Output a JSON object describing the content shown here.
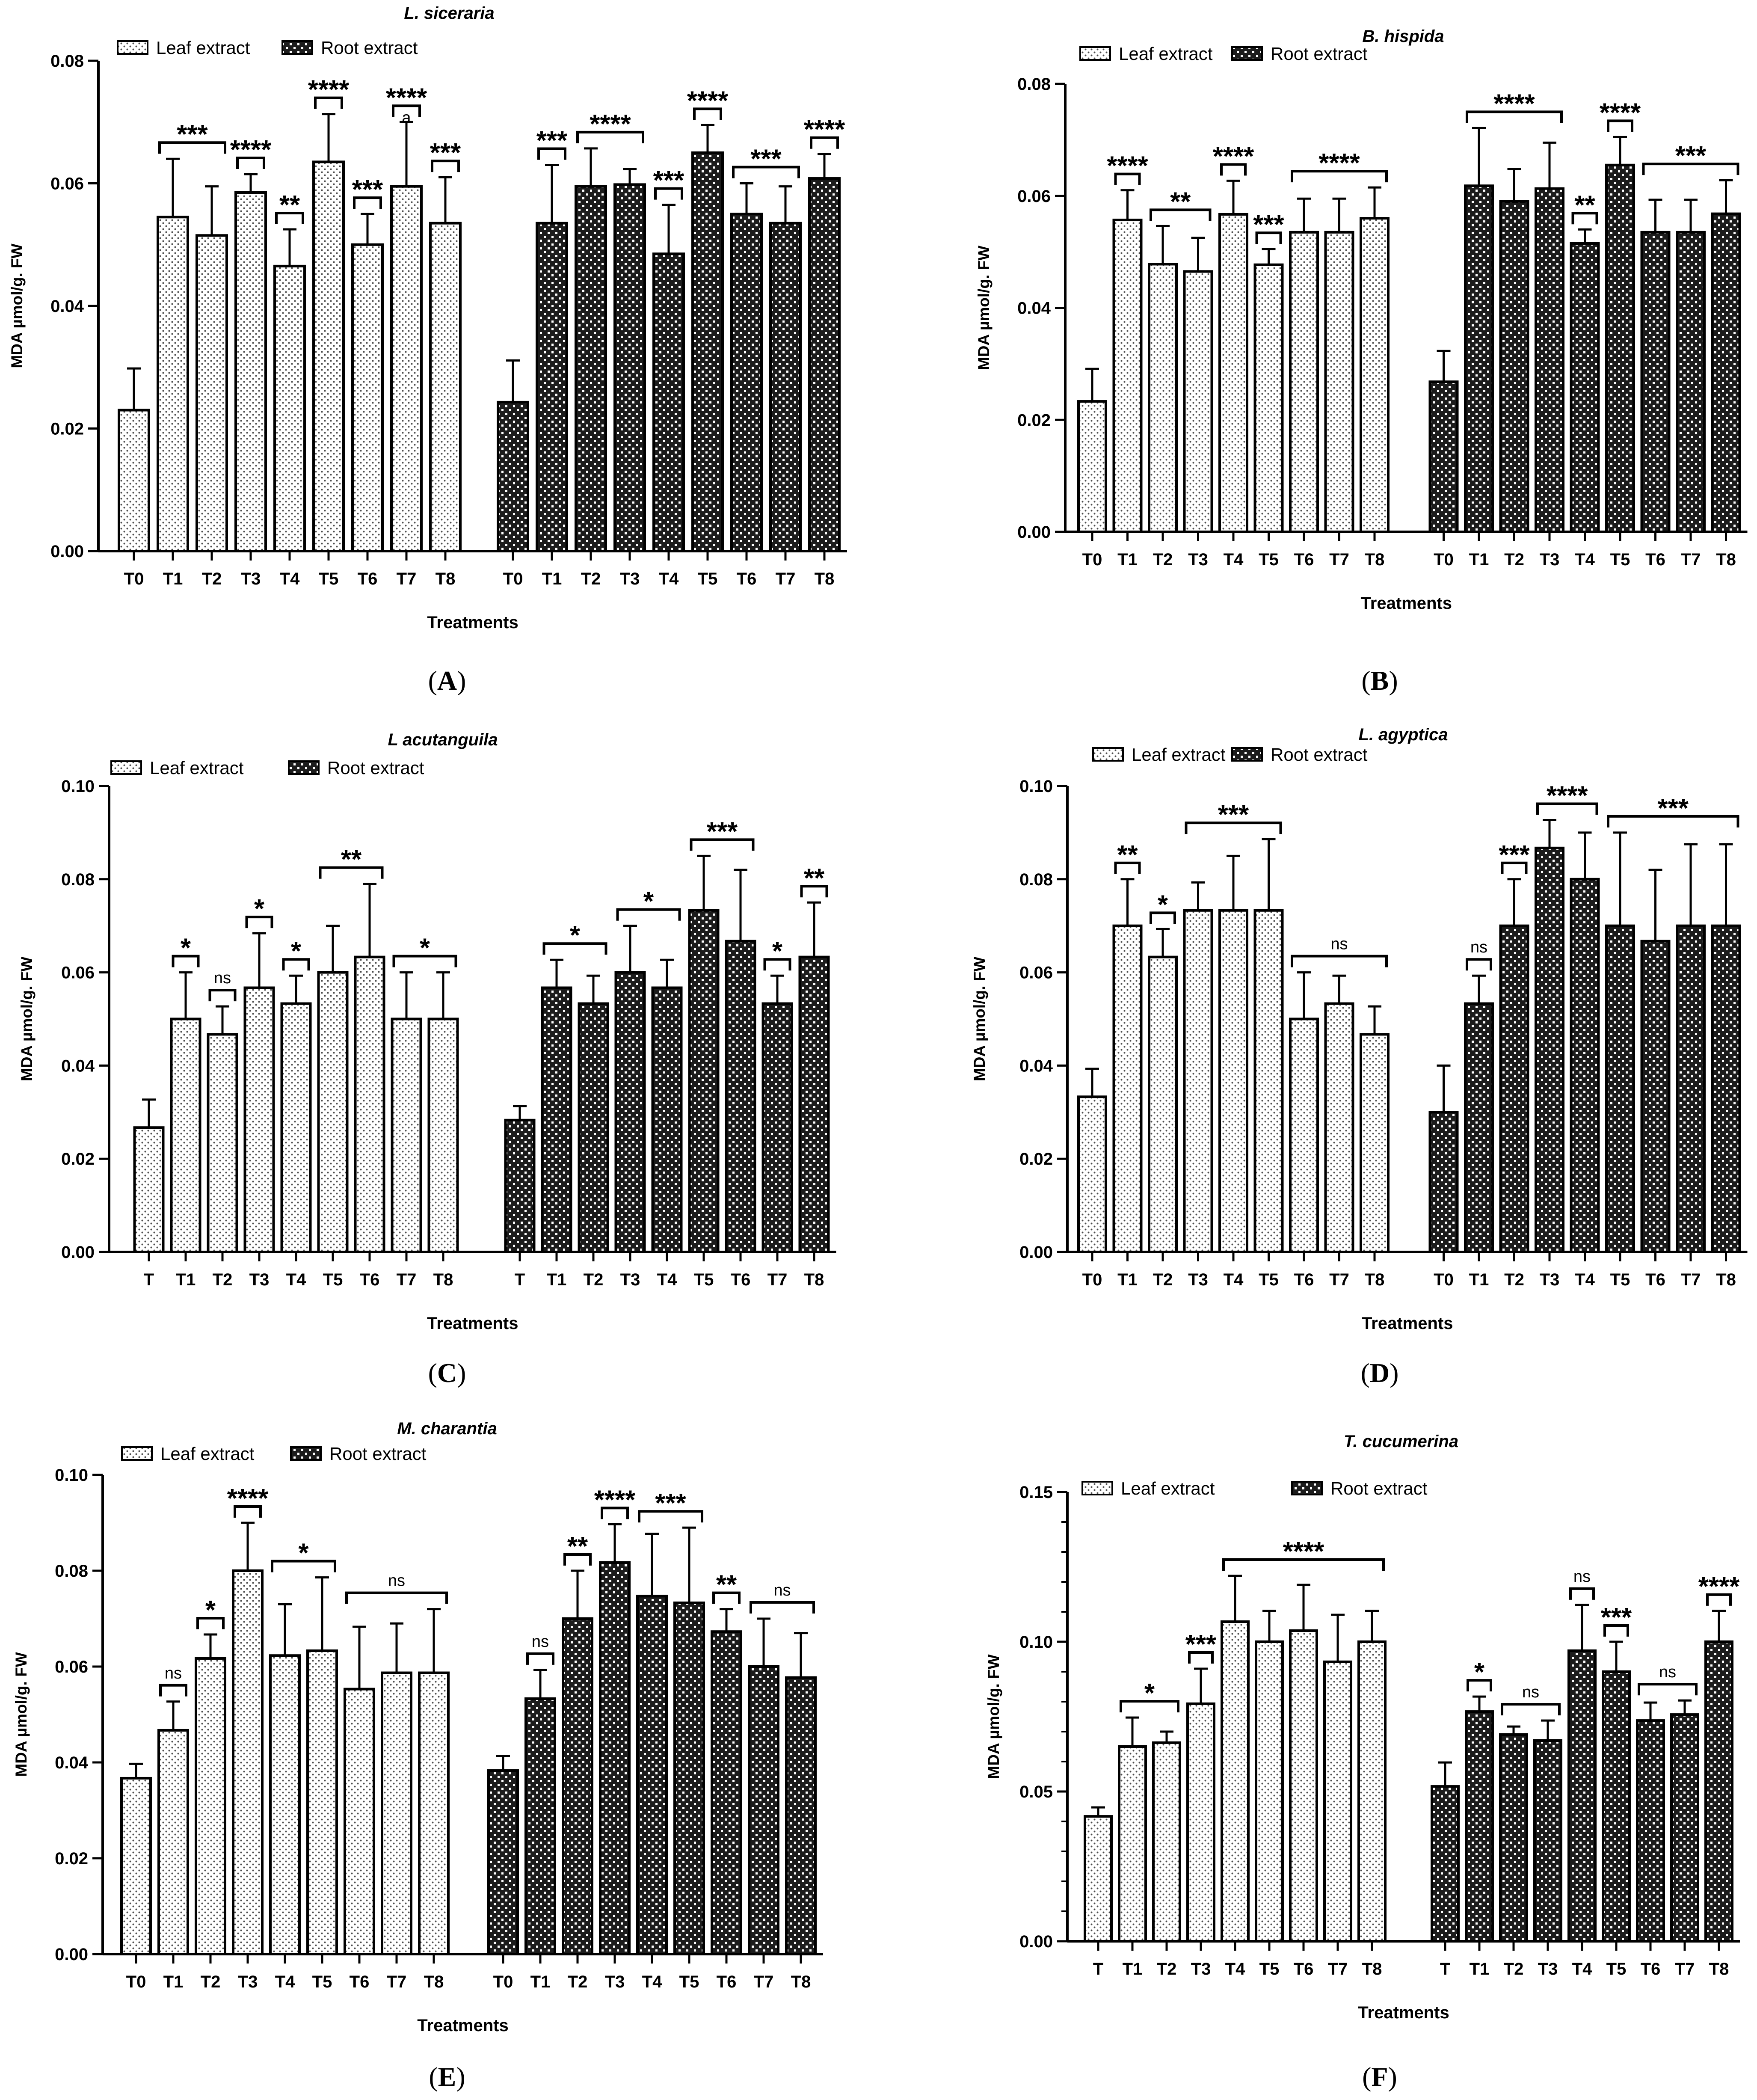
{
  "figure": {
    "legend_leaf": "Leaf extract",
    "legend_root": "Root extract",
    "xlabel": "Treatments",
    "ylabel": "MDA µmol/g. FW"
  },
  "colors": {
    "leaf_dots": "#4d4d4d",
    "root_fill": "#1c1c1c",
    "axis": "#000000",
    "background": "#ffffff"
  },
  "chart_data": [
    {
      "type": "bar",
      "panel_label": "A",
      "title": "L.  siceraria",
      "xlabel": "Treatments",
      "ylabel": "MDA µmol/g. FW",
      "ylim": [
        0,
        0.08
      ],
      "yticks": [
        0,
        0.02,
        0.04,
        0.06,
        0.08
      ],
      "ytick_labels": [
        "0.00",
        "0.02",
        "0.04",
        "0.06",
        "0.08"
      ],
      "groups": [
        {
          "name": "Leaf extract",
          "categories": [
            "T0",
            "T1",
            "T2",
            "T3",
            "T4",
            "T5",
            "T6",
            "T7",
            "T8"
          ],
          "values": [
            0.023,
            0.0545,
            0.0515,
            0.0585,
            0.0465,
            0.0635,
            0.05,
            0.0595,
            0.0535
          ],
          "errors": [
            0.0068,
            0.0095,
            0.008,
            0.003,
            0.006,
            0.0078,
            0.005,
            0.0105,
            0.0075
          ],
          "annotations": [
            {
              "from": 1,
              "to": 2,
              "label": "***"
            },
            {
              "from": 3,
              "to": 3,
              "label": "****"
            },
            {
              "from": 4,
              "to": 4,
              "label": "**"
            },
            {
              "from": 5,
              "to": 5,
              "label": "****"
            },
            {
              "from": 6,
              "to": 6,
              "label": "***"
            },
            {
              "from": 7,
              "to": 7,
              "label": "****"
            },
            {
              "from": 8,
              "to": 8,
              "label": "***"
            }
          ],
          "bar_letters": [
            {
              "index": 7,
              "label": "a"
            }
          ]
        },
        {
          "name": "Root extract",
          "categories": [
            "T0",
            "T1",
            "T2",
            "T3",
            "T4",
            "T5",
            "T6",
            "T7",
            "T8"
          ],
          "values": [
            0.0243,
            0.0535,
            0.0595,
            0.0598,
            0.0485,
            0.065,
            0.055,
            0.0535,
            0.0608
          ],
          "errors": [
            0.0068,
            0.0095,
            0.0062,
            0.0025,
            0.008,
            0.0045,
            0.005,
            0.006,
            0.004
          ],
          "annotations": [
            {
              "from": 1,
              "to": 1,
              "label": "***"
            },
            {
              "from": 2,
              "to": 3,
              "label": "****"
            },
            {
              "from": 4,
              "to": 4,
              "label": "***"
            },
            {
              "from": 5,
              "to": 5,
              "label": "****"
            },
            {
              "from": 6,
              "to": 7,
              "label": "***"
            },
            {
              "from": 8,
              "to": 8,
              "label": "****"
            }
          ]
        }
      ]
    },
    {
      "type": "bar",
      "panel_label": "B",
      "title": "B. hispida",
      "xlabel": "Treatments",
      "ylabel": "MDA µmol/g. FW",
      "ylim": [
        0,
        0.08
      ],
      "yticks": [
        0,
        0.02,
        0.04,
        0.06,
        0.08
      ],
      "ytick_labels": [
        "0.00",
        "0.02",
        "0.04",
        "0.06",
        "0.08"
      ],
      "groups": [
        {
          "name": "Leaf extract",
          "categories": [
            "T0",
            "T1",
            "T2",
            "T3",
            "T4",
            "T5",
            "T6",
            "T7",
            "T8"
          ],
          "values": [
            0.0233,
            0.0557,
            0.0478,
            0.0465,
            0.0567,
            0.0477,
            0.0535,
            0.0535,
            0.056
          ],
          "errors": [
            0.0058,
            0.0053,
            0.0068,
            0.006,
            0.006,
            0.0028,
            0.006,
            0.006,
            0.0055
          ],
          "annotations": [
            {
              "from": 1,
              "to": 1,
              "label": "****"
            },
            {
              "from": 2,
              "to": 3,
              "label": "**"
            },
            {
              "from": 4,
              "to": 4,
              "label": "****"
            },
            {
              "from": 5,
              "to": 5,
              "label": "***"
            },
            {
              "from": 6,
              "to": 8,
              "label": "****"
            }
          ]
        },
        {
          "name": "Root extract",
          "categories": [
            "T0",
            "T1",
            "T2",
            "T3",
            "T4",
            "T5",
            "T6",
            "T7",
            "T8"
          ],
          "values": [
            0.0268,
            0.0618,
            0.059,
            0.0613,
            0.0515,
            0.0655,
            0.0535,
            0.0535,
            0.0568
          ],
          "errors": [
            0.0055,
            0.0103,
            0.0058,
            0.0082,
            0.0025,
            0.005,
            0.0058,
            0.0058,
            0.006
          ],
          "annotations": [
            {
              "from": 1,
              "to": 3,
              "label": "****"
            },
            {
              "from": 4,
              "to": 4,
              "label": "**"
            },
            {
              "from": 5,
              "to": 5,
              "label": "****"
            },
            {
              "from": 6,
              "to": 8,
              "label": "***"
            }
          ]
        }
      ]
    },
    {
      "type": "bar",
      "panel_label": "C",
      "title": "L acutanguila",
      "xlabel": "Treatments",
      "ylabel": "MDA µmol/g. FW",
      "ylim": [
        0,
        0.1
      ],
      "yticks": [
        0,
        0.02,
        0.04,
        0.06,
        0.08,
        0.1
      ],
      "ytick_labels": [
        "0.00",
        "0.02",
        "0.04",
        "0.06",
        "0.08",
        "0.10"
      ],
      "groups": [
        {
          "name": "Leaf extract",
          "categories": [
            "T",
            "T1",
            "T2",
            "T3",
            "T4",
            "T5",
            "T6",
            "T7",
            "T8"
          ],
          "values": [
            0.0267,
            0.05,
            0.0467,
            0.0567,
            0.0533,
            0.06,
            0.0633,
            0.05,
            0.05
          ],
          "errors": [
            0.006,
            0.01,
            0.006,
            0.0117,
            0.006,
            0.01,
            0.0157,
            0.01,
            0.01
          ],
          "annotations": [
            {
              "from": 1,
              "to": 1,
              "label": "*"
            },
            {
              "from": 2,
              "to": 2,
              "label": "ns"
            },
            {
              "from": 3,
              "to": 3,
              "label": "*"
            },
            {
              "from": 4,
              "to": 4,
              "label": "*"
            },
            {
              "from": 5,
              "to": 6,
              "label": "**"
            },
            {
              "from": 7,
              "to": 8,
              "label": "*"
            }
          ]
        },
        {
          "name": "Root extract",
          "categories": [
            "T",
            "T1",
            "T2",
            "T3",
            "T4",
            "T5",
            "T6",
            "T7",
            "T8"
          ],
          "values": [
            0.0283,
            0.0567,
            0.0533,
            0.06,
            0.0567,
            0.0733,
            0.0667,
            0.0533,
            0.0633
          ],
          "errors": [
            0.003,
            0.006,
            0.006,
            0.01,
            0.006,
            0.0117,
            0.0153,
            0.006,
            0.0117
          ],
          "annotations": [
            {
              "from": 1,
              "to": 2,
              "label": "*"
            },
            {
              "from": 3,
              "to": 4,
              "label": "*"
            },
            {
              "from": 5,
              "to": 6,
              "label": "***"
            },
            {
              "from": 7,
              "to": 7,
              "label": "*"
            },
            {
              "from": 8,
              "to": 8,
              "label": "**"
            }
          ]
        }
      ]
    },
    {
      "type": "bar",
      "panel_label": "D",
      "title": "L. agyptica",
      "xlabel": "Treatments",
      "ylabel": "MDA µmol/g. FW",
      "ylim": [
        0,
        0.1
      ],
      "yticks": [
        0,
        0.02,
        0.04,
        0.06,
        0.08,
        0.1
      ],
      "ytick_labels": [
        "0.00",
        "0.02",
        "0.04",
        "0.06",
        "0.08",
        "0.10"
      ],
      "groups": [
        {
          "name": "Leaf extract",
          "categories": [
            "T0",
            "T1",
            "T2",
            "T3",
            "T4",
            "T5",
            "T6",
            "T7",
            "T8"
          ],
          "values": [
            0.0333,
            0.07,
            0.0633,
            0.0733,
            0.0733,
            0.0733,
            0.05,
            0.0533,
            0.0467
          ],
          "errors": [
            0.006,
            0.01,
            0.006,
            0.006,
            0.0117,
            0.0153,
            0.01,
            0.006,
            0.006
          ],
          "annotations": [
            {
              "from": 1,
              "to": 1,
              "label": "**"
            },
            {
              "from": 2,
              "to": 2,
              "label": "*"
            },
            {
              "from": 3,
              "to": 5,
              "label": "***"
            },
            {
              "from": 6,
              "to": 8,
              "label": "ns"
            }
          ]
        },
        {
          "name": "Root extract",
          "categories": [
            "T0",
            "T1",
            "T2",
            "T3",
            "T4",
            "T5",
            "T6",
            "T7",
            "T8"
          ],
          "values": [
            0.03,
            0.0533,
            0.07,
            0.0867,
            0.08,
            0.07,
            0.0667,
            0.07,
            0.07
          ],
          "errors": [
            0.01,
            0.006,
            0.01,
            0.006,
            0.01,
            0.02,
            0.0153,
            0.0175,
            0.0175
          ],
          "annotations": [
            {
              "from": 1,
              "to": 1,
              "label": "ns"
            },
            {
              "from": 2,
              "to": 2,
              "label": "***"
            },
            {
              "from": 3,
              "to": 4,
              "label": "****"
            },
            {
              "from": 5,
              "to": 8,
              "label": "***"
            }
          ]
        }
      ]
    },
    {
      "type": "bar",
      "panel_label": "E",
      "title": "M. charantia",
      "xlabel": "Treatments",
      "ylabel": "MDA µmol/g. FW",
      "ylim": [
        0,
        0.1
      ],
      "yticks": [
        0,
        0.02,
        0.04,
        0.06,
        0.08,
        0.1
      ],
      "ytick_labels": [
        "0.00",
        "0.02",
        "0.04",
        "0.06",
        "0.08",
        "0.10"
      ],
      "groups": [
        {
          "name": "Leaf extract",
          "categories": [
            "T0",
            "T1",
            "T2",
            "T3",
            "T4",
            "T5",
            "T6",
            "T7",
            "T8"
          ],
          "values": [
            0.0367,
            0.0467,
            0.0617,
            0.08,
            0.0623,
            0.0633,
            0.0553,
            0.0587,
            0.0587
          ],
          "errors": [
            0.003,
            0.006,
            0.005,
            0.01,
            0.0107,
            0.0153,
            0.013,
            0.0103,
            0.0133
          ],
          "annotations": [
            {
              "from": 1,
              "to": 1,
              "label": "ns"
            },
            {
              "from": 2,
              "to": 2,
              "label": "*"
            },
            {
              "from": 3,
              "to": 3,
              "label": "****"
            },
            {
              "from": 4,
              "to": 5,
              "label": "*"
            },
            {
              "from": 6,
              "to": 8,
              "label": "ns"
            }
          ]
        },
        {
          "name": "Root extract",
          "categories": [
            "T0",
            "T1",
            "T2",
            "T3",
            "T4",
            "T5",
            "T6",
            "T7",
            "T8"
          ],
          "values": [
            0.0383,
            0.0533,
            0.07,
            0.0817,
            0.0747,
            0.0733,
            0.0673,
            0.06,
            0.0577
          ],
          "errors": [
            0.003,
            0.006,
            0.01,
            0.008,
            0.013,
            0.0157,
            0.0047,
            0.01,
            0.0093
          ],
          "annotations": [
            {
              "from": 1,
              "to": 1,
              "label": "ns"
            },
            {
              "from": 2,
              "to": 2,
              "label": "**"
            },
            {
              "from": 3,
              "to": 3,
              "label": "****"
            },
            {
              "from": 4,
              "to": 5,
              "label": "***"
            },
            {
              "from": 6,
              "to": 6,
              "label": "**"
            },
            {
              "from": 7,
              "to": 8,
              "label": "ns"
            }
          ]
        }
      ]
    },
    {
      "type": "bar",
      "panel_label": "F",
      "title": "T. cucumerina",
      "xlabel": "Treatments",
      "ylabel": "MDA µmol/g. FW",
      "ylim": [
        0,
        0.15
      ],
      "yticks": [
        0,
        0.05,
        0.1,
        0.15
      ],
      "ytick_labels": [
        "0.00",
        "0.05",
        "0.10",
        "0.15"
      ],
      "minor_step": 0.01,
      "groups": [
        {
          "name": "Leaf extract",
          "categories": [
            "T",
            "T1",
            "T2",
            "T3",
            "T4",
            "T5",
            "T6",
            "T7",
            "T8"
          ],
          "values": [
            0.0417,
            0.065,
            0.0663,
            0.0793,
            0.1067,
            0.1,
            0.1037,
            0.0933,
            0.1
          ],
          "errors": [
            0.003,
            0.0097,
            0.0037,
            0.0117,
            0.0153,
            0.0103,
            0.0153,
            0.0157,
            0.0103
          ],
          "annotations": [
            {
              "from": 1,
              "to": 2,
              "label": "*"
            },
            {
              "from": 3,
              "to": 3,
              "label": "***"
            },
            {
              "from": 4,
              "to": 8,
              "label": "****"
            }
          ]
        },
        {
          "name": "Root extract",
          "categories": [
            "T",
            "T1",
            "T2",
            "T3",
            "T4",
            "T5",
            "T6",
            "T7",
            "T8"
          ],
          "values": [
            0.0517,
            0.0767,
            0.069,
            0.067,
            0.097,
            0.09,
            0.0737,
            0.0757,
            0.1
          ],
          "errors": [
            0.008,
            0.005,
            0.0027,
            0.0067,
            0.0153,
            0.01,
            0.006,
            0.0047,
            0.0103
          ],
          "annotations": [
            {
              "from": 1,
              "to": 1,
              "label": "*"
            },
            {
              "from": 2,
              "to": 3,
              "label": "ns"
            },
            {
              "from": 4,
              "to": 4,
              "label": "ns"
            },
            {
              "from": 5,
              "to": 5,
              "label": "***"
            },
            {
              "from": 6,
              "to": 7,
              "label": "ns"
            },
            {
              "from": 8,
              "to": 8,
              "label": "****"
            }
          ]
        }
      ]
    }
  ]
}
